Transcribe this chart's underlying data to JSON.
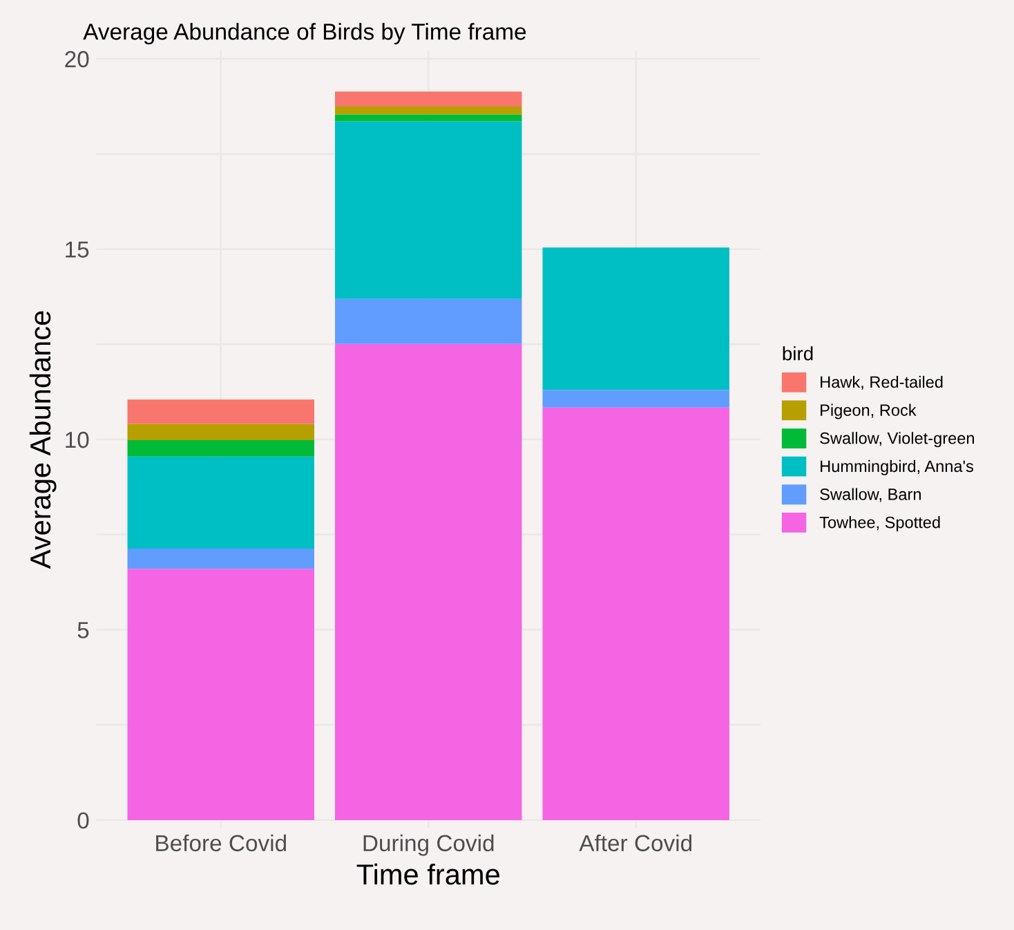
{
  "chart_data": {
    "type": "bar",
    "title": "Average Abundance of Birds by Time frame",
    "xlabel": "Time frame",
    "ylabel": "Average Abundance",
    "legend_title": "bird",
    "categories": [
      "Before Covid",
      "During Covid",
      "After Covid"
    ],
    "stacked": true,
    "series": [
      {
        "name": "Towhee, Spotted",
        "color": "#f564e3",
        "values": [
          6.6,
          12.51,
          10.84
        ]
      },
      {
        "name": "Swallow, Barn",
        "color": "#619cff",
        "values": [
          0.53,
          1.18,
          0.46
        ]
      },
      {
        "name": "Hummingbird, Anna's",
        "color": "#00bfc4",
        "values": [
          2.42,
          4.67,
          3.74
        ]
      },
      {
        "name": "Swallow, Violet-green",
        "color": "#00ba38",
        "values": [
          0.43,
          0.18,
          0
        ]
      },
      {
        "name": "Pigeon, Rock",
        "color": "#b79f00",
        "values": [
          0.43,
          0.21,
          0
        ]
      },
      {
        "name": "Hawk, Red-tailed",
        "color": "#f8766d",
        "values": [
          0.64,
          0.39,
          0
        ]
      }
    ],
    "ylim": [
      -0.2,
      20.2
    ],
    "yticks": [
      0,
      {
        "value": 2.5,
        "label": null
      },
      5,
      {
        "value": 7.5,
        "label": null
      },
      10,
      {
        "value": 12.5,
        "label": null
      },
      15,
      {
        "value": 17.5,
        "label": null
      },
      20
    ],
    "grid": true,
    "legend": "right"
  }
}
